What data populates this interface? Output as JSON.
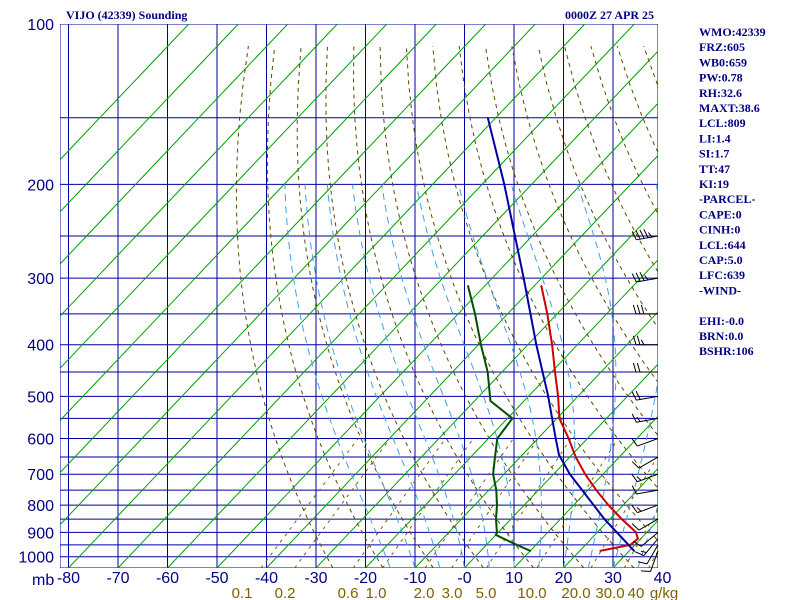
{
  "chart_data": {
    "type": "skew-t log-p sounding",
    "title": "VIJO (42339) Sounding",
    "timestamp": "0000Z 27 APR 25",
    "pressure_axis": {
      "tick_labels": [
        "100",
        "200",
        "300",
        "400",
        "500",
        "600",
        "700",
        "800",
        "900",
        "1000"
      ],
      "unit_label": "mb",
      "range": [
        1050,
        100
      ],
      "scale": "log"
    },
    "temperature_axis": {
      "tick_labels": [
        "80",
        "70",
        "60",
        "50",
        "40",
        "30",
        "20",
        "10",
        "0",
        "10",
        "20",
        "30",
        "40"
      ],
      "tick_values": [
        -80,
        -70,
        -60,
        -50,
        -40,
        -30,
        -20,
        -10,
        0,
        10,
        20,
        30,
        40
      ],
      "minus_signs": [
        "-",
        "-",
        "-",
        "-",
        "-",
        "-",
        "-",
        "-",
        "-",
        "",
        "",
        "",
        ""
      ]
    },
    "mixing_ratio_labels": [
      "0.1",
      "0.2",
      "0.6",
      "1.0",
      "2.0",
      "3.0",
      "5.0",
      "10.0",
      "20.0",
      "30.0",
      "40",
      "g/kg"
    ],
    "grid": true,
    "series": [
      {
        "name": "Temperature",
        "color": "#cc0000",
        "points": [
          {
            "p": 975,
            "t": 24.1
          },
          {
            "p": 950,
            "t": 29.1
          },
          {
            "p": 925,
            "t": 29.4
          },
          {
            "p": 900,
            "t": 27.8
          },
          {
            "p": 850,
            "t": 22.4
          },
          {
            "p": 800,
            "t": 17.0
          },
          {
            "p": 750,
            "t": 11.7
          },
          {
            "p": 700,
            "t": 6.4
          },
          {
            "p": 650,
            "t": 1.2
          },
          {
            "p": 600,
            "t": -3.8
          },
          {
            "p": 550,
            "t": -9.5
          },
          {
            "p": 500,
            "t": -14.0
          },
          {
            "p": 450,
            "t": -19.3
          },
          {
            "p": 400,
            "t": -25.1
          },
          {
            "p": 350,
            "t": -32.0
          },
          {
            "p": 310,
            "t": -38.6
          }
        ]
      },
      {
        "name": "Dewpoint",
        "color": "#005000",
        "points": [
          {
            "p": 975,
            "t": 10.0
          },
          {
            "p": 950,
            "t": 6.1
          },
          {
            "p": 925,
            "t": 2.3
          },
          {
            "p": 910,
            "t": 0.0
          },
          {
            "p": 900,
            "t": -0.3
          },
          {
            "p": 850,
            "t": -3.0
          },
          {
            "p": 800,
            "t": -5.5
          },
          {
            "p": 750,
            "t": -8.5
          },
          {
            "p": 700,
            "t": -12.2
          },
          {
            "p": 650,
            "t": -15.1
          },
          {
            "p": 600,
            "t": -18.2
          },
          {
            "p": 550,
            "t": -19.0
          },
          {
            "p": 510,
            "t": -26.8
          },
          {
            "p": 450,
            "t": -32.9
          },
          {
            "p": 400,
            "t": -39.5
          },
          {
            "p": 350,
            "t": -46.6
          },
          {
            "p": 310,
            "t": -53.4
          }
        ]
      },
      {
        "name": "Parcel",
        "color": "#0000a0",
        "points": [
          {
            "p": 975,
            "t": 31.0
          },
          {
            "p": 850,
            "t": 18.9
          },
          {
            "p": 700,
            "t": 3.3
          },
          {
            "p": 644,
            "t": -2.6
          },
          {
            "p": 600,
            "t": -6.4
          },
          {
            "p": 500,
            "t": -16.0
          },
          {
            "p": 400,
            "t": -28.3
          },
          {
            "p": 300,
            "t": -43.6
          },
          {
            "p": 200,
            "t": -65.5
          },
          {
            "p": 150,
            "t": -81.6
          }
        ]
      }
    ],
    "wind_barbs": [
      {
        "p": 975,
        "dir": 200,
        "spd": 10
      },
      {
        "p": 950,
        "dir": 210,
        "spd": 10
      },
      {
        "p": 925,
        "dir": 220,
        "spd": 15
      },
      {
        "p": 900,
        "dir": 230,
        "spd": 10
      },
      {
        "p": 850,
        "dir": 240,
        "spd": 10
      },
      {
        "p": 800,
        "dir": 250,
        "spd": 15
      },
      {
        "p": 750,
        "dir": 260,
        "spd": 10
      },
      {
        "p": 700,
        "dir": 250,
        "spd": 15
      },
      {
        "p": 650,
        "dir": 240,
        "spd": 10
      },
      {
        "p": 600,
        "dir": 250,
        "spd": 10
      },
      {
        "p": 550,
        "dir": 260,
        "spd": 15
      },
      {
        "p": 500,
        "dir": 260,
        "spd": 20
      },
      {
        "p": 450,
        "dir": 270,
        "spd": 20
      },
      {
        "p": 400,
        "dir": 270,
        "spd": 25
      },
      {
        "p": 350,
        "dir": 270,
        "spd": 30
      },
      {
        "p": 300,
        "dir": 260,
        "spd": 35
      },
      {
        "p": 250,
        "dir": 260,
        "spd": 45
      }
    ]
  },
  "indices": [
    "WMO:42339",
    "FRZ:605",
    "WB0:659",
    "PW:0.78",
    "RH:32.6",
    "MAXT:38.6",
    "LCL:809",
    "LI:1.4",
    "SI:1.7",
    "TT:47",
    "KI:19",
    "-PARCEL-",
    "CAPE:0",
    "CINH:0",
    "LCL:644",
    "CAP:5.0",
    "LFC:639",
    "-WIND-",
    "",
    "EHI:-0.0",
    "BRN:0.0",
    "BSHR:106"
  ],
  "colors": {
    "isobar": "#0000a0",
    "isotherm": "#00a000",
    "dry_adiabat": "#5a4a00",
    "moist_adiabat": "#40a0e0",
    "mixing_ratio": "#806000",
    "text": "#000080"
  }
}
